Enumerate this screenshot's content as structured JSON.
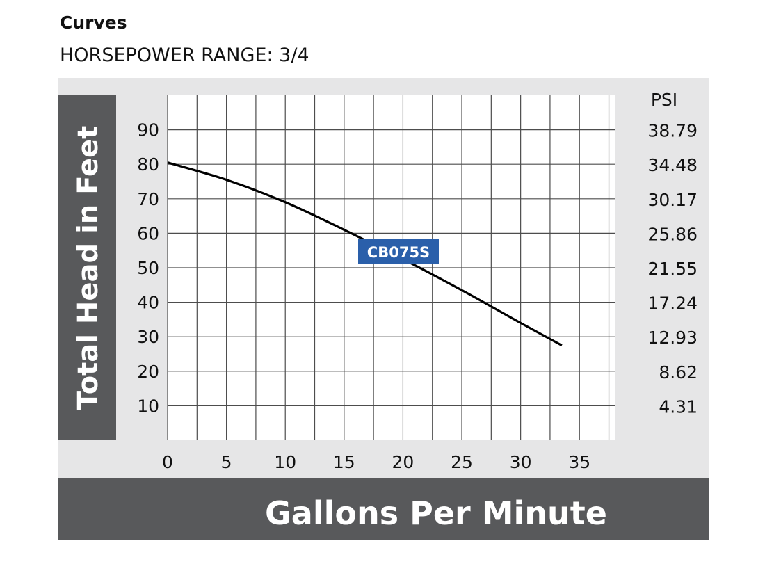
{
  "header": {
    "title": "Curves",
    "subtitle": "HORSEPOWER RANGE: 3/4"
  },
  "colors": {
    "panel_light": "#e6e6e7",
    "panel_dark": "#58595b",
    "grid": "#4d4d4d",
    "curve": "#000000",
    "label_bg": "#2a5faa"
  },
  "chart_data": {
    "type": "line",
    "xlabel": "Gallons Per Minute",
    "ylabel": "Total Head in Feet",
    "xlim": [
      0,
      38
    ],
    "ylim": [
      0,
      100
    ],
    "x_ticks": [
      0,
      5,
      10,
      15,
      20,
      25,
      30,
      35
    ],
    "y_ticks": [
      10,
      20,
      30,
      40,
      50,
      60,
      70,
      80,
      90
    ],
    "secondary_axis": {
      "title": "PSI",
      "tick_labels": [
        "38.79",
        "34.48",
        "30.17",
        "25.86",
        "21.55",
        "17.24",
        "12.93",
        "8.62",
        "4.31"
      ]
    },
    "grid": true,
    "series": [
      {
        "name": "CB075S",
        "x": [
          0,
          5,
          10,
          15,
          20,
          25,
          30,
          33.5
        ],
        "y": [
          80.5,
          75.5,
          69,
          61,
          52.5,
          43.5,
          34,
          27.5
        ]
      }
    ]
  }
}
